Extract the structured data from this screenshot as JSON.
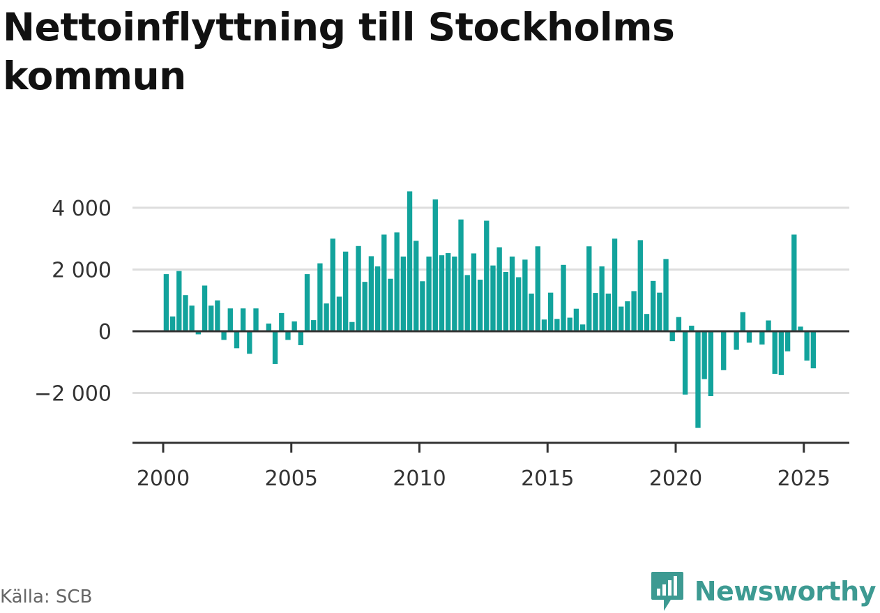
{
  "title": "Nettoinflyttning till Stockholms kommun",
  "source": "Källa: SCB",
  "brand": {
    "name": "Newsworthy",
    "icon": "newsworthy-logo-icon",
    "color": "#3d9a92"
  },
  "chart_data": {
    "type": "bar",
    "title": "Nettoinflyttning till Stockholms kommun",
    "xlabel": "",
    "ylabel": "",
    "bar_color": "#12a39c",
    "grid": true,
    "ylim": [
      -3400,
      4600
    ],
    "xlim": [
      2000,
      2025.8
    ],
    "yticks": [
      -2000,
      0,
      2000,
      4000
    ],
    "ytick_labels": [
      "−2 000",
      "0",
      "2 000",
      "4 000"
    ],
    "xticks": [
      2000,
      2005,
      2010,
      2015,
      2020,
      2025
    ],
    "xtick_labels": [
      "2000",
      "2005",
      "2010",
      "2015",
      "2020",
      "2025"
    ],
    "bar_width_years": 0.2,
    "x": [
      2000.12,
      2000.37,
      2000.62,
      2000.87,
      2001.12,
      2001.37,
      2001.62,
      2001.87,
      2002.12,
      2002.37,
      2002.62,
      2002.87,
      2003.12,
      2003.37,
      2003.62,
      2003.87,
      2004.12,
      2004.37,
      2004.62,
      2004.87,
      2005.12,
      2005.37,
      2005.62,
      2005.87,
      2006.12,
      2006.37,
      2006.62,
      2006.87,
      2007.12,
      2007.37,
      2007.62,
      2007.87,
      2008.12,
      2008.37,
      2008.62,
      2008.87,
      2009.12,
      2009.37,
      2009.62,
      2009.87,
      2010.12,
      2010.37,
      2010.62,
      2010.87,
      2011.12,
      2011.37,
      2011.62,
      2011.87,
      2012.12,
      2012.37,
      2012.62,
      2012.87,
      2013.12,
      2013.37,
      2013.62,
      2013.87,
      2014.12,
      2014.37,
      2014.62,
      2014.87,
      2015.12,
      2015.37,
      2015.62,
      2015.87,
      2016.12,
      2016.37,
      2016.62,
      2016.87,
      2017.12,
      2017.37,
      2017.62,
      2017.87,
      2018.12,
      2018.37,
      2018.62,
      2018.87,
      2019.12,
      2019.37,
      2019.62,
      2019.87,
      2020.12,
      2020.37,
      2020.62,
      2020.87,
      2021.12,
      2021.37,
      2021.62,
      2021.87,
      2022.12,
      2022.37,
      2022.62,
      2022.87,
      2023.12,
      2023.37,
      2023.62,
      2023.87,
      2024.12,
      2024.37,
      2024.62,
      2024.87,
      2025.12,
      2025.37
    ],
    "values": [
      1850,
      480,
      1950,
      1170,
      830,
      -100,
      1480,
      830,
      1000,
      -280,
      740,
      -550,
      740,
      -730,
      740,
      0,
      250,
      -1060,
      590,
      -280,
      320,
      -450,
      1850,
      360,
      2200,
      900,
      3000,
      1120,
      2580,
      300,
      2760,
      1600,
      2430,
      2100,
      3130,
      1700,
      3200,
      2420,
      4530,
      2930,
      1620,
      2420,
      4270,
      2460,
      2530,
      2420,
      3620,
      1820,
      2520,
      1670,
      3580,
      2130,
      2720,
      1920,
      2420,
      1750,
      2320,
      1220,
      2750,
      380,
      1250,
      400,
      2150,
      440,
      730,
      220,
      2750,
      1240,
      2100,
      1220,
      3000,
      800,
      970,
      1300,
      2950,
      560,
      1630,
      1250,
      2340,
      -320,
      460,
      -2050,
      180,
      -3130,
      -1550,
      -2100,
      0,
      -1260,
      0,
      -600,
      620,
      -370,
      0,
      -430,
      350,
      -1380,
      -1420,
      -650,
      3130,
      150,
      -950,
      -1200
    ]
  }
}
